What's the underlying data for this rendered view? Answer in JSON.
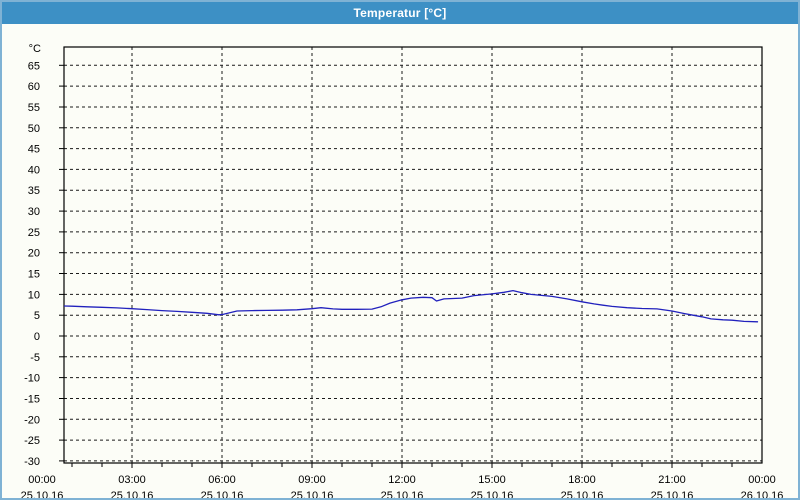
{
  "window": {
    "title": "Temperatur [°C]",
    "titlebar_color": "#3d90c5",
    "border_color": "#7fb2d4",
    "background": "#fcfdf7"
  },
  "chart_data": {
    "type": "line",
    "title": "Temperatur [°C]",
    "y_unit": "°C",
    "ylabel": "",
    "xlabel": "",
    "grid": true,
    "legend": "none",
    "ylim": [
      -30.5,
      69.4
    ],
    "xlim": [
      0.733,
      24
    ],
    "y_ticks": [
      65,
      60,
      55,
      50,
      45,
      40,
      35,
      30,
      25,
      20,
      15,
      10,
      5,
      0,
      -5,
      -10,
      -15,
      -20,
      -25,
      -30
    ],
    "x_gridline_hours": [
      3,
      6,
      9,
      12,
      15,
      18,
      21
    ],
    "x_major_ticks": [
      {
        "hour": 0,
        "time": "00:00",
        "date": "25.10.16"
      },
      {
        "hour": 3,
        "time": "03:00",
        "date": "25.10.16"
      },
      {
        "hour": 6,
        "time": "06:00",
        "date": "25.10.16"
      },
      {
        "hour": 9,
        "time": "09:00",
        "date": "25.10.16"
      },
      {
        "hour": 12,
        "time": "12:00",
        "date": "25.10.16"
      },
      {
        "hour": 15,
        "time": "15:00",
        "date": "25.10.16"
      },
      {
        "hour": 18,
        "time": "18:00",
        "date": "25.10.16"
      },
      {
        "hour": 21,
        "time": "21:00",
        "date": "25.10.16"
      },
      {
        "hour": 24,
        "time": "00:00",
        "date": "26.10.16"
      }
    ],
    "grid_color": "#1a1a1a",
    "axis_color": "#000000",
    "text_color": "#000000",
    "line_color": "#2121bd",
    "series": [
      {
        "name": "Temperatur",
        "unit": "°C",
        "points": [
          [
            0.73,
            7.2
          ],
          [
            1,
            7.15
          ],
          [
            1.5,
            7.0
          ],
          [
            2,
            6.9
          ],
          [
            2.5,
            6.75
          ],
          [
            3,
            6.55
          ],
          [
            3.5,
            6.35
          ],
          [
            4,
            6.1
          ],
          [
            4.5,
            5.9
          ],
          [
            5,
            5.7
          ],
          [
            5.5,
            5.45
          ],
          [
            5.9,
            5.1
          ],
          [
            6.05,
            5.2
          ],
          [
            6.5,
            6.0
          ],
          [
            7,
            6.1
          ],
          [
            7.5,
            6.15
          ],
          [
            8,
            6.2
          ],
          [
            8.5,
            6.3
          ],
          [
            9,
            6.55
          ],
          [
            9.3,
            6.8
          ],
          [
            9.7,
            6.5
          ],
          [
            10,
            6.4
          ],
          [
            10.5,
            6.4
          ],
          [
            11,
            6.45
          ],
          [
            11.3,
            7.0
          ],
          [
            11.6,
            7.9
          ],
          [
            12,
            8.7
          ],
          [
            12.3,
            9.1
          ],
          [
            12.7,
            9.3
          ],
          [
            13,
            9.2
          ],
          [
            13.15,
            8.4
          ],
          [
            13.4,
            8.9
          ],
          [
            14,
            9.1
          ],
          [
            14.4,
            9.7
          ],
          [
            15,
            10.1
          ],
          [
            15.4,
            10.5
          ],
          [
            15.7,
            10.9
          ],
          [
            16,
            10.4
          ],
          [
            16.3,
            10.0
          ],
          [
            17,
            9.5
          ],
          [
            17.5,
            8.9
          ],
          [
            18,
            8.2
          ],
          [
            18.4,
            7.7
          ],
          [
            18.7,
            7.4
          ],
          [
            19,
            7.1
          ],
          [
            19.5,
            6.8
          ],
          [
            20,
            6.6
          ],
          [
            20.5,
            6.5
          ],
          [
            21,
            6.0
          ],
          [
            21.4,
            5.4
          ],
          [
            21.7,
            5.0
          ],
          [
            22,
            4.6
          ],
          [
            22.3,
            4.1
          ],
          [
            22.7,
            3.9
          ],
          [
            23,
            3.8
          ],
          [
            23.4,
            3.5
          ],
          [
            23.85,
            3.4
          ]
        ]
      }
    ]
  }
}
